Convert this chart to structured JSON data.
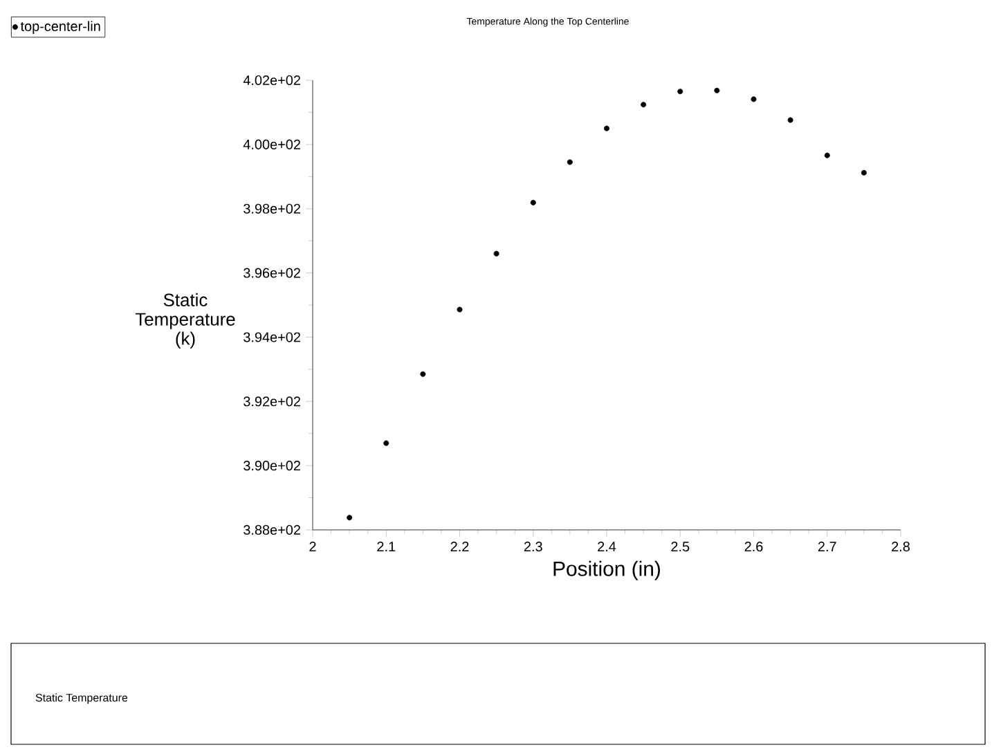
{
  "chart_data": {
    "type": "scatter",
    "title": "Temperature Along the Top Centerline",
    "xlabel": "Position (in)",
    "ylabel": "Static Temperature (k)",
    "x": [
      2.05,
      2.1,
      2.15,
      2.2,
      2.25,
      2.3,
      2.35,
      2.4,
      2.45,
      2.5,
      2.55,
      2.6,
      2.65,
      2.7,
      2.75
    ],
    "series": [
      {
        "name": "top-center-lin",
        "color": "#000000",
        "values": [
          388.38,
          390.7,
          392.85,
          394.86,
          396.6,
          398.19,
          399.45,
          400.5,
          401.24,
          401.65,
          401.68,
          401.41,
          400.76,
          399.66,
          399.12
        ]
      }
    ],
    "xlim": [
      2,
      2.8
    ],
    "xticks": [
      2,
      2.1,
      2.2,
      2.3,
      2.4,
      2.5,
      2.6,
      2.7,
      2.8
    ],
    "ylim": [
      388,
      402
    ],
    "yticks": [
      {
        "value": 388,
        "label": "3.88e+02"
      },
      {
        "value": 390,
        "label": "3.90e+02"
      },
      {
        "value": 392,
        "label": "3.92e+02"
      },
      {
        "value": 394,
        "label": "3.94e+02"
      },
      {
        "value": 396,
        "label": "3.96e+02"
      },
      {
        "value": 398,
        "label": "3.98e+02"
      },
      {
        "value": 400,
        "label": "4.00e+02"
      },
      {
        "value": 402,
        "label": "4.02e+02"
      }
    ],
    "marker": "circle",
    "legend": "top left",
    "grid": false,
    "annotations": [
      "Static Temperature"
    ]
  }
}
